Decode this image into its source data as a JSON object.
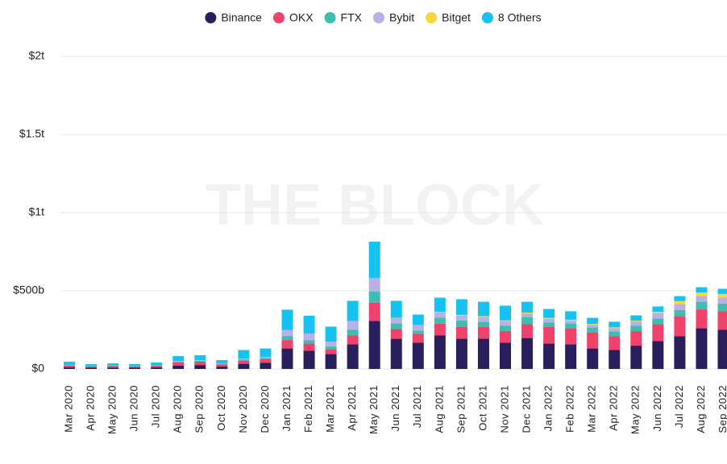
{
  "chart_data": {
    "type": "stacked_bar",
    "watermark": "THE BLOCK",
    "categories": [
      "Mar 2020",
      "Apr 2020",
      "May 2020",
      "Jun 2020",
      "Jul 2020",
      "Aug 2020",
      "Sep 2020",
      "Oct 2020",
      "Nov 2020",
      "Dec 2020",
      "Jan 2021",
      "Feb 2021",
      "Mar 2021",
      "Apr 2021",
      "May 2021",
      "Jun 2021",
      "Jul 2021",
      "Aug 2021",
      "Sep 2021",
      "Oct 2021",
      "Nov 2021",
      "Dec 2021",
      "Jan 2022",
      "Feb 2022",
      "Mar 2022",
      "Apr 2022",
      "May 2022",
      "Jun 2022",
      "Jul 2022",
      "Aug 2022",
      "Sep 2022"
    ],
    "series": [
      {
        "name": "Binance",
        "color": "#2a1f5c",
        "values": [
          10,
          8,
          9,
          8,
          10,
          22,
          25,
          15,
          33,
          40,
          131,
          116,
          95,
          157,
          307,
          193,
          168,
          214,
          193,
          193,
          168,
          198,
          162,
          157,
          131,
          121,
          149,
          178,
          209,
          260,
          250
        ]
      },
      {
        "name": "OKX",
        "color": "#f0436b",
        "values": [
          12,
          8,
          10,
          8,
          10,
          20,
          22,
          14,
          20,
          22,
          54,
          46,
          31,
          57,
          116,
          62,
          57,
          75,
          77,
          77,
          75,
          88,
          108,
          103,
          103,
          88,
          93,
          108,
          129,
          121,
          119
        ]
      },
      {
        "name": "FTX",
        "color": "#3cbfae",
        "values": [
          2,
          2,
          2,
          2,
          3,
          5,
          6,
          4,
          8,
          9,
          26,
          21,
          18,
          36,
          72,
          36,
          21,
          39,
          39,
          31,
          33,
          46,
          28,
          31,
          31,
          31,
          34,
          36,
          39,
          49,
          49
        ]
      },
      {
        "name": "Bybit",
        "color": "#b8b0e6",
        "values": [
          1,
          1,
          1,
          1,
          1,
          3,
          3,
          2,
          5,
          6,
          39,
          44,
          31,
          57,
          88,
          34,
          33,
          33,
          33,
          31,
          31,
          23,
          23,
          18,
          18,
          21,
          28,
          36,
          39,
          36,
          39
        ]
      },
      {
        "name": "Bitget",
        "color": "#f5d93a",
        "values": [
          0,
          0,
          0,
          0,
          0,
          0,
          0,
          0,
          0,
          0,
          0,
          0,
          0,
          0,
          0,
          2,
          1,
          4,
          4,
          6,
          4,
          6,
          6,
          6,
          5,
          5,
          5,
          8,
          18,
          23,
          23
        ]
      },
      {
        "name": "8 Others",
        "color": "#15c2f0",
        "values": [
          21,
          12,
          14,
          12,
          17,
          32,
          32,
          22,
          55,
          54,
          129,
          113,
          96,
          129,
          231,
          109,
          68,
          91,
          100,
          92,
          94,
          69,
          57,
          54,
          39,
          36,
          34,
          34,
          32,
          34,
          33
        ]
      }
    ],
    "ylim": [
      0,
      2000
    ],
    "yticks": [
      {
        "value": 0,
        "label": "$0"
      },
      {
        "value": 500,
        "label": "$500b"
      },
      {
        "value": 1000,
        "label": "$1t"
      },
      {
        "value": 1500,
        "label": "$1.5t"
      },
      {
        "value": 2000,
        "label": "$2t"
      }
    ],
    "grid": true,
    "legend": "top"
  }
}
